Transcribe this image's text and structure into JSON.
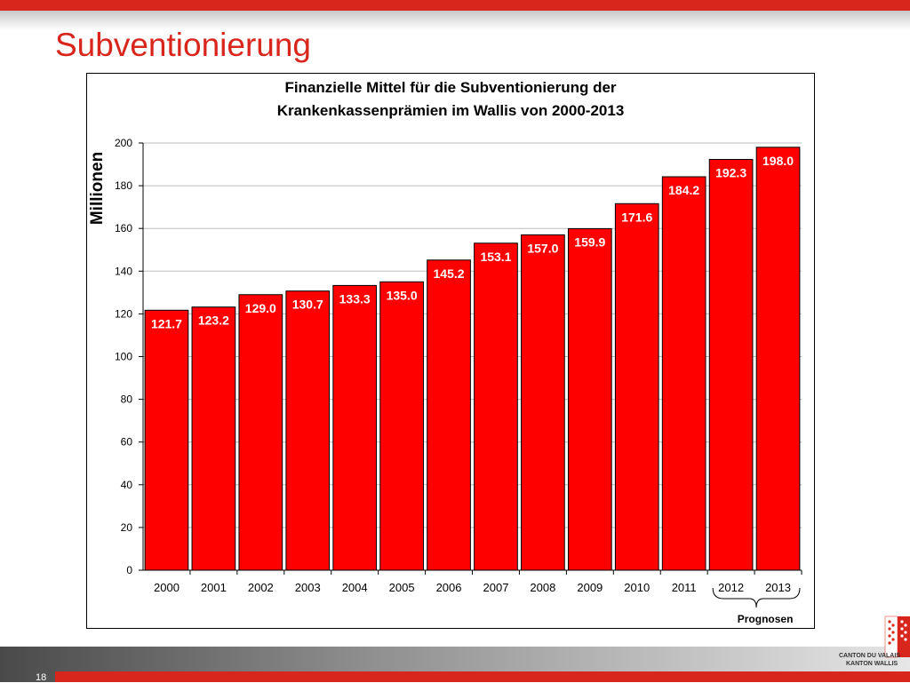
{
  "slide": {
    "title": "Subventionierung",
    "page_number": "18"
  },
  "logo": {
    "line1": "CANTON DU VALAIS",
    "line2": "KANTON WALLIS",
    "colors": [
      "#d9261c",
      "#ffffff"
    ]
  },
  "colors": {
    "accent": "#d9261c",
    "bar_fill": "#ff0000",
    "bar_label": "#ffffff"
  },
  "chart_data": {
    "type": "bar",
    "title_line1": "Finanzielle Mittel für die Subventionierung der",
    "title_line2": "Krankenkassenprämien im Wallis von 2000-2013",
    "xlabel": "",
    "ylabel": "Millionen",
    "ylim": [
      0,
      200
    ],
    "yticks": [
      0,
      20,
      40,
      60,
      80,
      100,
      120,
      140,
      160,
      180,
      200
    ],
    "grid": true,
    "categories": [
      "2000",
      "2001",
      "2002",
      "2003",
      "2004",
      "2005",
      "2006",
      "2007",
      "2008",
      "2009",
      "2010",
      "2011",
      "2012",
      "2013"
    ],
    "values": [
      121.7,
      123.2,
      129.0,
      130.7,
      133.3,
      135.0,
      145.2,
      153.1,
      157.0,
      159.9,
      171.6,
      184.2,
      192.3,
      198.0
    ],
    "value_labels": [
      "121.7",
      "123.2",
      "129.0",
      "130.7",
      "133.3",
      "135.0",
      "145.2",
      "153.1",
      "157.0",
      "159.9",
      "171.6",
      "184.2",
      "192.3",
      "198.0"
    ],
    "annotation": {
      "text": "Prognosen",
      "categories": [
        "2012",
        "2013"
      ]
    }
  }
}
